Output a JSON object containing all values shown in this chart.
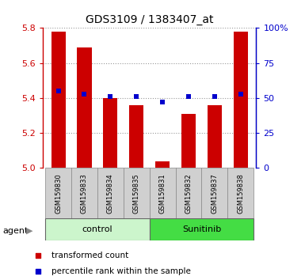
{
  "title": "GDS3109 / 1383407_at",
  "samples": [
    "GSM159830",
    "GSM159833",
    "GSM159834",
    "GSM159835",
    "GSM159831",
    "GSM159832",
    "GSM159837",
    "GSM159838"
  ],
  "group_labels": [
    "control",
    "Sunitinib"
  ],
  "red_values": [
    5.78,
    5.69,
    5.4,
    5.36,
    5.04,
    5.31,
    5.36,
    5.78
  ],
  "blue_values": [
    55,
    53,
    51,
    51,
    47,
    51,
    51,
    53
  ],
  "ylim_left": [
    5.0,
    5.8
  ],
  "ylim_right": [
    0,
    100
  ],
  "yticks_left": [
    5.0,
    5.2,
    5.4,
    5.6,
    5.8
  ],
  "yticks_right": [
    0,
    25,
    50,
    75,
    100
  ],
  "ytick_labels_right": [
    "0",
    "25",
    "50",
    "75",
    "100%"
  ],
  "bar_color": "#cc0000",
  "marker_color": "#0000cc",
  "bar_bottom": 5.0,
  "marker_size": 5,
  "agent_label": "agent",
  "legend_bar_label": "transformed count",
  "legend_marker_label": "percentile rank within the sample",
  "control_group_color": "#ccf5cc",
  "sunitinib_group_color": "#44dd44",
  "sample_box_color": "#d0d0d0"
}
